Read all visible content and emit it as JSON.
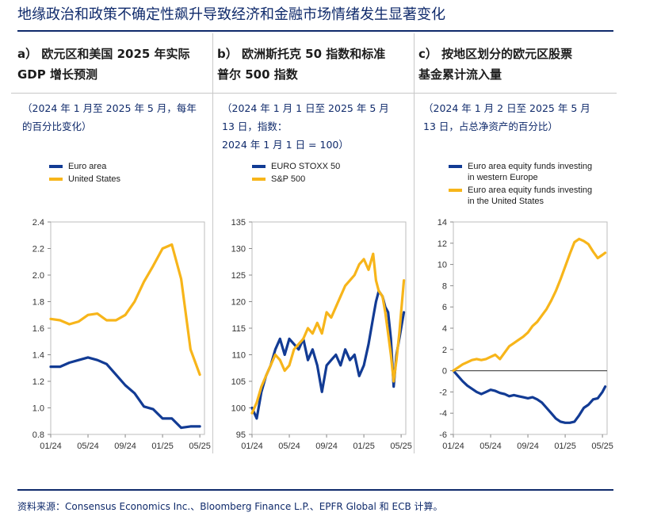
{
  "title": "地缘政治和政策不确定性飙升导致经济和金融市场情绪发生显著变化",
  "source": "资料来源：Consensus Economics Inc.、Bloomberg Finance L.P.、EPFR Global 和 ECB 计算。",
  "colors": {
    "navy": "#123b94",
    "gold": "#f7b51a",
    "rule": "#0f2a6b"
  },
  "panels": [
    {
      "title_line1": "a） 欧元区和美国 2025 年实际",
      "title_line2": "GDP 增长预测",
      "sub_line1": "（2024 年 1 月至 2025 年 5 月，每年",
      "sub_line2": "的百分比变化）",
      "sub_line3": ""
    },
    {
      "title_line1": "b） 欧洲斯托克 50 指数和标准",
      "title_line2": "普尔 500 指数",
      "sub_line1": "（2024 年 1 月 1 日至 2025 年 5 月",
      "sub_line2": "13 日，指数：",
      "sub_line3": "2024 年 1 月 1 日 = 100）"
    },
    {
      "title_line1": "c） 按地区划分的欧元区股票",
      "title_line2": "基金累计流入量",
      "sub_line1": "（2024 年 1 月 2 日至 2025 年 5 月",
      "sub_line2": "13 日，占总净资产的百分比）",
      "sub_line3": ""
    }
  ],
  "chart_data": [
    {
      "type": "line",
      "xlim": [
        0,
        16.5
      ],
      "ylim": [
        0.8,
        2.4
      ],
      "yticks": [
        0.8,
        1.0,
        1.2,
        1.4,
        1.6,
        1.8,
        2.0,
        2.2,
        2.4
      ],
      "x_tick_labels": [
        "01/24",
        "05/24",
        "09/24",
        "01/25",
        "05/25"
      ],
      "x_tick_positions": [
        0,
        4,
        8,
        12,
        16
      ],
      "series": [
        {
          "name": "Euro area",
          "color": "#123b94",
          "x": [
            0,
            1,
            2,
            3,
            4,
            5,
            6,
            7,
            8,
            9,
            10,
            11,
            12,
            13,
            14,
            15,
            16
          ],
          "y": [
            1.31,
            1.31,
            1.34,
            1.36,
            1.38,
            1.36,
            1.33,
            1.25,
            1.17,
            1.11,
            1.01,
            0.99,
            0.92,
            0.92,
            0.85,
            0.86,
            0.86
          ]
        },
        {
          "name": "United States",
          "color": "#f7b51a",
          "x": [
            0,
            1,
            2,
            3,
            4,
            5,
            6,
            7,
            8,
            9,
            10,
            11,
            12,
            13,
            14,
            15,
            16
          ],
          "y": [
            1.67,
            1.66,
            1.63,
            1.65,
            1.7,
            1.71,
            1.66,
            1.66,
            1.7,
            1.8,
            1.95,
            2.07,
            2.2,
            2.23,
            1.97,
            1.44,
            1.25
          ]
        }
      ]
    },
    {
      "type": "line",
      "xlim": [
        0,
        16.5
      ],
      "ylim": [
        95,
        135
      ],
      "yticks": [
        95,
        100,
        105,
        110,
        115,
        120,
        125,
        130,
        135
      ],
      "x_tick_labels": [
        "01/24",
        "05/24",
        "09/24",
        "01/25",
        "05/25"
      ],
      "x_tick_positions": [
        0,
        4,
        8,
        12,
        16
      ],
      "series": [
        {
          "name": "EURO STOXX 50",
          "color": "#123b94",
          "x": [
            0,
            0.5,
            1,
            1.5,
            2,
            2.5,
            3,
            3.5,
            4,
            4.5,
            5,
            5.5,
            6,
            6.5,
            7,
            7.5,
            8,
            8.5,
            9,
            9.5,
            10,
            10.5,
            11,
            11.5,
            12,
            12.5,
            13,
            13.3,
            13.6,
            14,
            14.3,
            14.6,
            14.9,
            15.2,
            15.5,
            15.8,
            16,
            16.3
          ],
          "y": [
            100,
            98,
            103,
            106,
            108,
            111,
            113,
            110,
            113,
            112,
            111,
            113,
            109,
            111,
            108,
            103,
            108,
            109,
            110,
            108,
            111,
            109,
            110,
            106,
            108,
            112,
            117,
            120,
            122,
            121,
            119,
            118,
            113,
            104,
            110,
            113,
            115,
            118
          ]
        },
        {
          "name": "S&P 500",
          "color": "#f7b51a",
          "x": [
            0,
            0.5,
            1,
            1.5,
            2,
            2.5,
            3,
            3.5,
            4,
            4.5,
            5,
            5.5,
            6,
            6.5,
            7,
            7.5,
            8,
            8.5,
            9,
            9.5,
            10,
            10.5,
            11,
            11.5,
            12,
            12.5,
            13,
            13.3,
            13.6,
            14,
            14.3,
            14.6,
            14.9,
            15.2,
            15.5,
            15.8,
            16,
            16.3
          ],
          "y": [
            99,
            101,
            104,
            106,
            108,
            110,
            109,
            107,
            108,
            111,
            112,
            113,
            115,
            114,
            116,
            114,
            118,
            117,
            119,
            121,
            123,
            124,
            125,
            127,
            128,
            126,
            129,
            124,
            122,
            121,
            118,
            114,
            110,
            105,
            109,
            114,
            118,
            124
          ]
        }
      ]
    },
    {
      "type": "line",
      "xlim": [
        0,
        16.5
      ],
      "ylim": [
        -6,
        14
      ],
      "yticks": [
        -6,
        -4,
        -2,
        0,
        2,
        4,
        6,
        8,
        10,
        12,
        14
      ],
      "x_tick_labels": [
        "01/24",
        "05/24",
        "09/24",
        "01/25",
        "05/25"
      ],
      "x_tick_positions": [
        0,
        4,
        8,
        12,
        16
      ],
      "zero_line": true,
      "series": [
        {
          "name": "Euro area equity funds investing in western Europe",
          "color": "#123b94",
          "x": [
            0,
            0.5,
            1,
            1.5,
            2,
            2.5,
            3,
            3.5,
            4,
            4.5,
            5,
            5.5,
            6,
            6.5,
            7,
            7.5,
            8,
            8.5,
            9,
            9.5,
            10,
            10.5,
            11,
            11.5,
            12,
            12.5,
            13,
            13.5,
            14,
            14.5,
            15,
            15.5,
            16,
            16.3
          ],
          "y": [
            0,
            -0.5,
            -1.0,
            -1.4,
            -1.7,
            -2.0,
            -2.2,
            -2.0,
            -1.8,
            -1.9,
            -2.1,
            -2.2,
            -2.4,
            -2.3,
            -2.4,
            -2.5,
            -2.6,
            -2.5,
            -2.7,
            -3.0,
            -3.5,
            -4.0,
            -4.5,
            -4.8,
            -4.9,
            -4.9,
            -4.8,
            -4.2,
            -3.5,
            -3.2,
            -2.7,
            -2.6,
            -2.0,
            -1.5
          ]
        },
        {
          "name": "Euro area equity funds investing in the United States",
          "color": "#f7b51a",
          "x": [
            0,
            0.5,
            1,
            1.5,
            2,
            2.5,
            3,
            3.5,
            4,
            4.5,
            5,
            5.5,
            6,
            6.5,
            7,
            7.5,
            8,
            8.5,
            9,
            9.5,
            10,
            10.5,
            11,
            11.5,
            12,
            12.5,
            13,
            13.5,
            14,
            14.5,
            15,
            15.5,
            16,
            16.3
          ],
          "y": [
            0,
            0.3,
            0.6,
            0.8,
            1.0,
            1.1,
            1.0,
            1.1,
            1.3,
            1.5,
            1.1,
            1.7,
            2.3,
            2.6,
            2.9,
            3.2,
            3.6,
            4.2,
            4.6,
            5.2,
            5.8,
            6.6,
            7.5,
            8.6,
            9.8,
            11.0,
            12.1,
            12.4,
            12.2,
            11.9,
            11.2,
            10.6,
            10.9,
            11.1
          ]
        }
      ]
    }
  ]
}
